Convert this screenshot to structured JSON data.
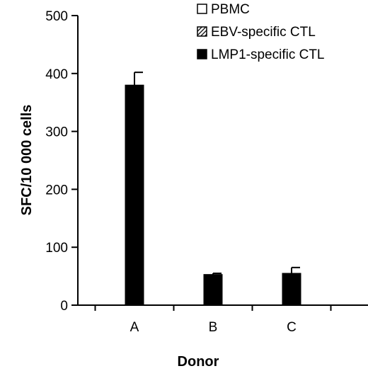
{
  "chart_data": {
    "type": "bar",
    "xlabel": "Donor",
    "ylabel": "SFC/10 000 cells",
    "ylim": [
      0,
      500
    ],
    "yticks": [
      0,
      100,
      200,
      300,
      400,
      500
    ],
    "categories": [
      "A",
      "B",
      "C"
    ],
    "legend_position": "top-right",
    "series": [
      {
        "name": "PBMC",
        "pattern": "white",
        "values": [
          0,
          0,
          0
        ],
        "errors": [
          0,
          0,
          0
        ]
      },
      {
        "name": "EBV-specific CTL",
        "pattern": "hatched",
        "values": [
          0,
          0,
          0
        ],
        "errors": [
          0,
          0,
          0
        ]
      },
      {
        "name": "LMP1-specific CTL",
        "pattern": "black",
        "values": [
          380,
          53,
          55
        ],
        "errors": [
          22,
          2,
          10
        ]
      }
    ],
    "colors": {
      "axis": "#000000",
      "bar": "#000000",
      "background": "#ffffff"
    }
  }
}
